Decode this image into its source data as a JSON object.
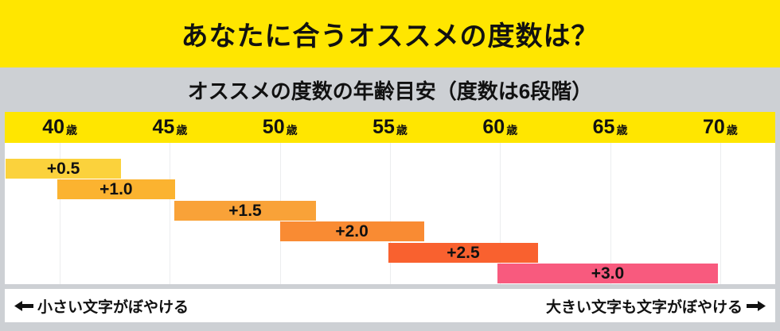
{
  "header": {
    "title": "あなたに合うオススメの度数は？"
  },
  "subtitle": "オススメの度数の年齢目安（度数は6段階）",
  "footer": {
    "left_label": "小さい文字がぼやける",
    "right_label": "大きい文字も文字がぼやける",
    "left_arrow": "←",
    "right_arrow": "→"
  },
  "colors": {
    "yellow": "#FFE600",
    "gray": "#CDD0D4",
    "gridline": "#ECEDEF",
    "text": "#111111"
  },
  "chart_data": {
    "type": "bar",
    "variant": "horizontal-range (gantt-style age ranges)",
    "title": "オススメの度数の年齢目安（度数は6段階）",
    "x_ticks": [
      "40",
      "45",
      "50",
      "55",
      "60",
      "65",
      "70"
    ],
    "x_unit": "歳",
    "xlim": [
      37.5,
      72.5
    ],
    "grid": "vertical line at each age tick",
    "legend_position": "none",
    "bars": [
      {
        "label": "+0.5",
        "age_start": 37.5,
        "age_end": 42.5,
        "color": "#FBD23C",
        "left_pct": 0.1,
        "width_pct": 15.0
      },
      {
        "label": "+1.0",
        "age_start": 40.0,
        "age_end": 45.3,
        "color": "#FBB330",
        "left_pct": 6.8,
        "width_pct": 15.3
      },
      {
        "label": "+1.5",
        "age_start": 45.3,
        "age_end": 51.7,
        "color": "#F9A238",
        "left_pct": 22.0,
        "width_pct": 18.4
      },
      {
        "label": "+2.0",
        "age_start": 50.0,
        "age_end": 56.5,
        "color": "#F98B33",
        "left_pct": 35.7,
        "width_pct": 18.7
      },
      {
        "label": "+2.5",
        "age_start": 55.0,
        "age_end": 61.8,
        "color": "#F9612F",
        "left_pct": 49.8,
        "width_pct": 19.4
      },
      {
        "label": "+3.0",
        "age_start": 60.0,
        "age_end": 70.0,
        "color": "#F85A7E",
        "left_pct": 63.9,
        "width_pct": 28.7
      }
    ]
  }
}
